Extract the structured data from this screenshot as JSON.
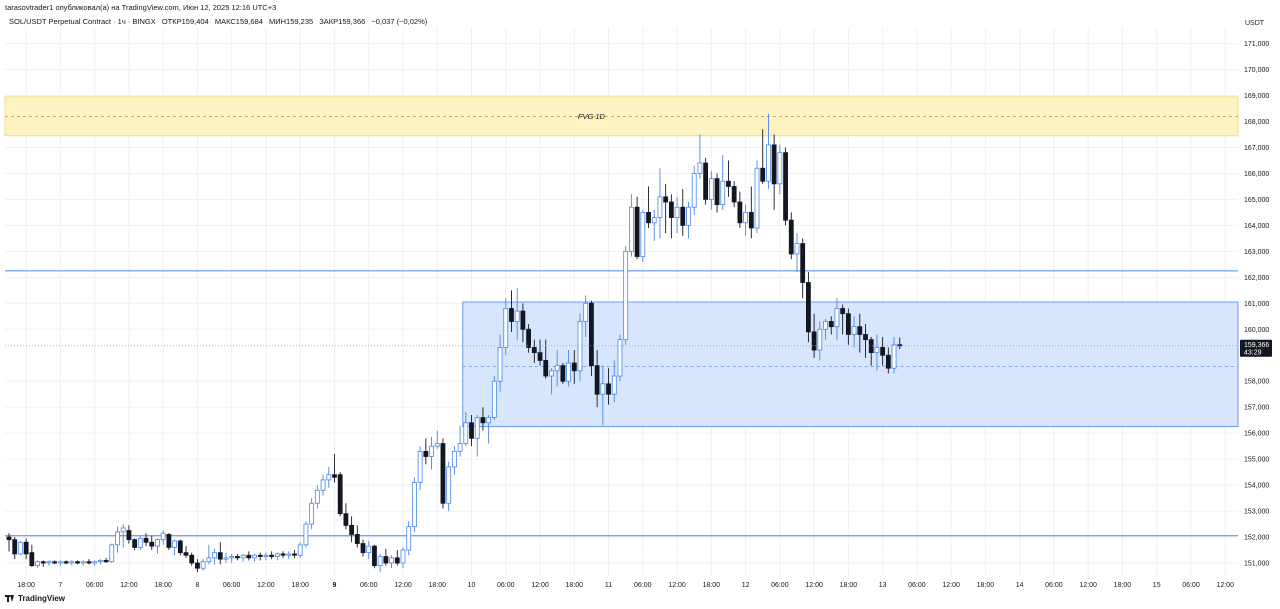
{
  "caption": "tarasovtrader1 опубликовал(а) на TradingView.com, Июн 12, 2025 12:16 UTC+3",
  "legend": {
    "symbol": "SOL/USDT Perpetual Contract · 1ч · BINGX",
    "open": "ОТКР159,404",
    "high": "МАКС159,684",
    "low": "МИН159,235",
    "close": "ЗАКР159,366",
    "change": "−0,037 (−0,02%)"
  },
  "footer": {
    "brand": "TradingView"
  },
  "chart_data": {
    "type": "candlestick",
    "currency": "USDT",
    "ylim": [
      150500,
      171600
    ],
    "y_ticks": [
      {
        "value": 171000,
        "label": "171,000"
      },
      {
        "value": 170000,
        "label": "170,000"
      },
      {
        "value": 169000,
        "label": "169,000"
      },
      {
        "value": 168000,
        "label": "168,000"
      },
      {
        "value": 167000,
        "label": "167,000"
      },
      {
        "value": 166000,
        "label": "166,000"
      },
      {
        "value": 165000,
        "label": "165,000"
      },
      {
        "value": 164000,
        "label": "164,000"
      },
      {
        "value": 163000,
        "label": "163,000"
      },
      {
        "value": 162000,
        "label": "162,000"
      },
      {
        "value": 161000,
        "label": "161,000"
      },
      {
        "value": 160000,
        "label": "160,000"
      },
      {
        "value": 158000,
        "label": "158,000"
      },
      {
        "value": 157000,
        "label": "157,000"
      },
      {
        "value": 156000,
        "label": "156,000"
      },
      {
        "value": 155000,
        "label": "155,000"
      },
      {
        "value": 154000,
        "label": "154,000"
      },
      {
        "value": 153000,
        "label": "153,000"
      },
      {
        "value": 152000,
        "label": "152,000"
      },
      {
        "value": 151000,
        "label": "151,000"
      }
    ],
    "x_ticks": [
      {
        "i": 3,
        "label": "18:00",
        "bold": false
      },
      {
        "i": 9,
        "label": "7",
        "bold": false
      },
      {
        "i": 15,
        "label": "06:00",
        "bold": false
      },
      {
        "i": 21,
        "label": "12:00",
        "bold": false
      },
      {
        "i": 27,
        "label": "18:00",
        "bold": false
      },
      {
        "i": 33,
        "label": "8",
        "bold": false
      },
      {
        "i": 39,
        "label": "06:00",
        "bold": false
      },
      {
        "i": 45,
        "label": "12:00",
        "bold": false
      },
      {
        "i": 51,
        "label": "18:00",
        "bold": false
      },
      {
        "i": 57,
        "label": "9",
        "bold": true
      },
      {
        "i": 63,
        "label": "06:00",
        "bold": false
      },
      {
        "i": 69,
        "label": "12:00",
        "bold": false
      },
      {
        "i": 75,
        "label": "18:00",
        "bold": false
      },
      {
        "i": 81,
        "label": "10",
        "bold": false
      },
      {
        "i": 87,
        "label": "06:00",
        "bold": false
      },
      {
        "i": 93,
        "label": "12:00",
        "bold": false
      },
      {
        "i": 99,
        "label": "18:00",
        "bold": false
      },
      {
        "i": 105,
        "label": "11",
        "bold": false
      },
      {
        "i": 111,
        "label": "06:00",
        "bold": false
      },
      {
        "i": 117,
        "label": "12:00",
        "bold": false
      },
      {
        "i": 123,
        "label": "18:00",
        "bold": false
      },
      {
        "i": 129,
        "label": "12",
        "bold": false
      },
      {
        "i": 135,
        "label": "06:00",
        "bold": false
      },
      {
        "i": 141,
        "label": "12:00",
        "bold": false
      },
      {
        "i": 147,
        "label": "18:00",
        "bold": false
      },
      {
        "i": 153,
        "label": "13",
        "bold": false
      },
      {
        "i": 159,
        "label": "06:00",
        "bold": false
      },
      {
        "i": 165,
        "label": "12:00",
        "bold": false
      },
      {
        "i": 171,
        "label": "18:00",
        "bold": false
      },
      {
        "i": 177,
        "label": "14",
        "bold": false
      },
      {
        "i": 183,
        "label": "06:00",
        "bold": false
      },
      {
        "i": 189,
        "label": "12:00",
        "bold": false
      },
      {
        "i": 195,
        "label": "18:00",
        "bold": false
      },
      {
        "i": 201,
        "label": "15",
        "bold": false
      },
      {
        "i": 207,
        "label": "06:00",
        "bold": false
      },
      {
        "i": 213,
        "label": "12:00",
        "bold": false
      }
    ],
    "candles": [
      [
        152000,
        152150,
        151450,
        151900
      ],
      [
        151900,
        152000,
        151150,
        151350
      ],
      [
        151350,
        151850,
        151300,
        151800
      ],
      [
        151800,
        151950,
        151150,
        151350
      ],
      [
        151400,
        151700,
        150850,
        150900
      ],
      [
        150900,
        151100,
        150800,
        151050
      ],
      [
        151050,
        151100,
        150850,
        151000
      ],
      [
        151000,
        151100,
        150900,
        151050
      ],
      [
        151050,
        151100,
        150950,
        151000
      ],
      [
        151000,
        151100,
        150900,
        151050
      ],
      [
        151050,
        151100,
        150950,
        151000
      ],
      [
        151000,
        151100,
        150900,
        151050
      ],
      [
        151050,
        151100,
        150950,
        151000
      ],
      [
        151000,
        151100,
        150900,
        151050
      ],
      [
        151050,
        151150,
        150950,
        151000
      ],
      [
        151000,
        151100,
        150900,
        151050
      ],
      [
        151050,
        151150,
        150950,
        151100
      ],
      [
        151100,
        151200,
        151000,
        151050
      ],
      [
        151050,
        151750,
        151000,
        151700
      ],
      [
        151700,
        152400,
        151400,
        152200
      ],
      [
        152200,
        152500,
        151600,
        152350
      ],
      [
        152250,
        152450,
        151750,
        151900
      ],
      [
        151900,
        151950,
        151500,
        151600
      ],
      [
        151600,
        152050,
        151500,
        151950
      ],
      [
        151950,
        152150,
        151650,
        151800
      ],
      [
        151800,
        152050,
        151500,
        151650
      ],
      [
        151650,
        151950,
        151350,
        151900
      ],
      [
        151900,
        152250,
        151700,
        152150
      ],
      [
        152100,
        152150,
        151500,
        151600
      ],
      [
        151600,
        151900,
        151300,
        151850
      ],
      [
        151850,
        151900,
        151300,
        151400
      ],
      [
        151400,
        151650,
        151200,
        151300
      ],
      [
        151300,
        151400,
        150900,
        151000
      ],
      [
        151000,
        151150,
        150650,
        150800
      ],
      [
        150800,
        151150,
        150700,
        151050
      ],
      [
        151050,
        151700,
        150950,
        151200
      ],
      [
        151200,
        151550,
        150950,
        151400
      ],
      [
        151400,
        151800,
        150950,
        151150
      ],
      [
        151150,
        151400,
        151000,
        151200
      ],
      [
        151200,
        151350,
        151000,
        151250
      ],
      [
        151250,
        151350,
        151100,
        151200
      ],
      [
        151200,
        151350,
        151050,
        151300
      ],
      [
        151300,
        151450,
        151100,
        151200
      ],
      [
        151200,
        151350,
        151050,
        151300
      ],
      [
        151300,
        151400,
        151100,
        151250
      ],
      [
        151250,
        151400,
        151100,
        151300
      ],
      [
        151300,
        151450,
        151150,
        151250
      ],
      [
        151250,
        151400,
        151100,
        151350
      ],
      [
        151350,
        151450,
        151200,
        151300
      ],
      [
        151300,
        151450,
        151150,
        151350
      ],
      [
        151350,
        151500,
        151200,
        151300
      ],
      [
        151300,
        151800,
        151200,
        151700
      ],
      [
        151700,
        152600,
        151600,
        152500
      ],
      [
        152500,
        153500,
        152300,
        153300
      ],
      [
        153300,
        154000,
        153100,
        153800
      ],
      [
        153800,
        154400,
        153600,
        154200
      ],
      [
        154200,
        154700,
        153900,
        154400
      ],
      [
        154400,
        155200,
        154100,
        154300
      ],
      [
        154400,
        154500,
        152800,
        152900
      ],
      [
        152900,
        153300,
        152300,
        152450
      ],
      [
        152450,
        152800,
        151800,
        152100
      ],
      [
        152100,
        152450,
        151600,
        151750
      ],
      [
        151750,
        151900,
        151250,
        151400
      ],
      [
        151400,
        151850,
        151150,
        151650
      ],
      [
        151650,
        151700,
        150800,
        150900
      ],
      [
        150900,
        151350,
        150650,
        151250
      ],
      [
        151250,
        151550,
        150900,
        151000
      ],
      [
        151000,
        151300,
        150800,
        151200
      ],
      [
        151200,
        151500,
        150900,
        151000
      ],
      [
        151000,
        151600,
        150800,
        151500
      ],
      [
        151500,
        152600,
        151300,
        152400
      ],
      [
        152400,
        154300,
        152200,
        154100
      ],
      [
        154100,
        155500,
        153800,
        155300
      ],
      [
        155300,
        155800,
        154800,
        155100
      ],
      [
        155100,
        155850,
        154600,
        155500
      ],
      [
        155500,
        156100,
        155400,
        155600
      ],
      [
        155600,
        155800,
        153100,
        153300
      ],
      [
        153300,
        154900,
        153000,
        154700
      ],
      [
        154700,
        155500,
        154400,
        155300
      ],
      [
        155300,
        156300,
        155100,
        155600
      ],
      [
        155600,
        156800,
        155500,
        156400
      ],
      [
        156400,
        156700,
        155500,
        155800
      ],
      [
        155800,
        156700,
        155100,
        156600
      ],
      [
        156600,
        157000,
        156100,
        156400
      ],
      [
        156400,
        156700,
        155600,
        156600
      ],
      [
        156600,
        158200,
        156500,
        158000
      ],
      [
        158000,
        159800,
        157600,
        159300
      ],
      [
        159300,
        161200,
        159000,
        160800
      ],
      [
        160800,
        161500,
        159900,
        160300
      ],
      [
        160300,
        161600,
        159600,
        160700
      ],
      [
        160700,
        161000,
        159500,
        160000
      ],
      [
        160000,
        160200,
        159100,
        159300
      ],
      [
        159300,
        159600,
        158700,
        159100
      ],
      [
        159100,
        159600,
        158600,
        158800
      ],
      [
        158800,
        159600,
        158100,
        158200
      ],
      [
        158200,
        158500,
        157500,
        158400
      ],
      [
        158400,
        159200,
        157800,
        158600
      ],
      [
        158600,
        158700,
        157900,
        158000
      ],
      [
        158000,
        159200,
        157800,
        158700
      ],
      [
        158700,
        159200,
        157900,
        158400
      ],
      [
        158400,
        160600,
        158000,
        160300
      ],
      [
        160300,
        161300,
        159700,
        161000
      ],
      [
        161000,
        161100,
        158200,
        158600
      ],
      [
        158600,
        159200,
        157000,
        157500
      ],
      [
        157500,
        158600,
        156300,
        157900
      ],
      [
        157900,
        158500,
        157100,
        157500
      ],
      [
        157500,
        158800,
        157200,
        158200
      ],
      [
        158200,
        159800,
        158000,
        159600
      ],
      [
        159600,
        163200,
        159400,
        163000
      ],
      [
        163000,
        165200,
        162800,
        164700
      ],
      [
        164700,
        165100,
        162700,
        162800
      ],
      [
        162800,
        164600,
        162600,
        164500
      ],
      [
        164500,
        165500,
        163900,
        164100
      ],
      [
        164100,
        164600,
        163400,
        164300
      ],
      [
        164300,
        166200,
        163500,
        165100
      ],
      [
        165100,
        165600,
        163700,
        164900
      ],
      [
        164900,
        165200,
        163500,
        164300
      ],
      [
        164300,
        165100,
        163700,
        164700
      ],
      [
        164700,
        165400,
        163600,
        164000
      ],
      [
        164000,
        164900,
        163500,
        164700
      ],
      [
        164700,
        166300,
        164400,
        166000
      ],
      [
        166000,
        167500,
        165800,
        166400
      ],
      [
        166400,
        166600,
        164800,
        165000
      ],
      [
        165000,
        166100,
        164600,
        165800
      ],
      [
        165800,
        166000,
        164500,
        164800
      ],
      [
        164800,
        166700,
        164600,
        165700
      ],
      [
        165700,
        166500,
        165100,
        165500
      ],
      [
        165500,
        165700,
        164700,
        164900
      ],
      [
        164900,
        165300,
        163900,
        164100
      ],
      [
        164100,
        164800,
        163600,
        164500
      ],
      [
        164500,
        165500,
        163500,
        163900
      ],
      [
        163900,
        166500,
        163700,
        166200
      ],
      [
        166200,
        167700,
        165600,
        165700
      ],
      [
        165700,
        168300,
        165400,
        167100
      ],
      [
        167100,
        167500,
        164600,
        165600
      ],
      [
        165600,
        167100,
        165200,
        166800
      ],
      [
        166800,
        167000,
        164000,
        164200
      ],
      [
        164200,
        164500,
        162700,
        162900
      ],
      [
        162900,
        163700,
        162200,
        163300
      ],
      [
        163300,
        163500,
        161200,
        161800
      ],
      [
        161800,
        162200,
        159500,
        159900
      ],
      [
        159900,
        160600,
        158900,
        159200
      ],
      [
        159200,
        160300,
        158800,
        160000
      ],
      [
        160000,
        160400,
        159600,
        160300
      ],
      [
        160300,
        160500,
        159800,
        160100
      ],
      [
        160100,
        161200,
        159600,
        160800
      ],
      [
        160800,
        160950,
        159800,
        160600
      ],
      [
        160600,
        160800,
        159400,
        159800
      ],
      [
        159800,
        160500,
        159300,
        160100
      ],
      [
        160100,
        160600,
        159100,
        159800
      ],
      [
        159800,
        160200,
        158900,
        159600
      ],
      [
        159600,
        159700,
        158600,
        159100
      ],
      [
        159100,
        159800,
        158400,
        159300
      ],
      [
        159300,
        159700,
        158600,
        159000
      ],
      [
        159000,
        159300,
        158300,
        158500
      ],
      [
        158500,
        159700,
        158300,
        159400
      ],
      [
        159404,
        159684,
        159235,
        159366
      ]
    ],
    "zones": [
      {
        "name": "FVG 1D",
        "label": "FVG 1D",
        "low": 167450,
        "high": 168950,
        "mid": 168200,
        "from_index": 0,
        "color": "#fff3c4",
        "border": "#f5d66a"
      },
      {
        "name": "range-box",
        "label": "",
        "low": 156250,
        "high": 161050,
        "mid": 158560,
        "from_index": 80,
        "color": "#d7e6fc",
        "border": "#4a86e8"
      }
    ],
    "h_lines": [
      {
        "value": 162250,
        "color": "#4a86e8"
      },
      {
        "value": 152050,
        "color": "#4a86e8"
      }
    ],
    "last_price": {
      "value": 159366,
      "label": "159,366",
      "countdown": "43:29"
    },
    "colors": {
      "up_fill": "#ffffff",
      "up_border": "#4a86e8",
      "down_fill": "#131722",
      "down_border": "#131722",
      "grid": "#eef0f4",
      "axis_text": "#131722"
    }
  }
}
